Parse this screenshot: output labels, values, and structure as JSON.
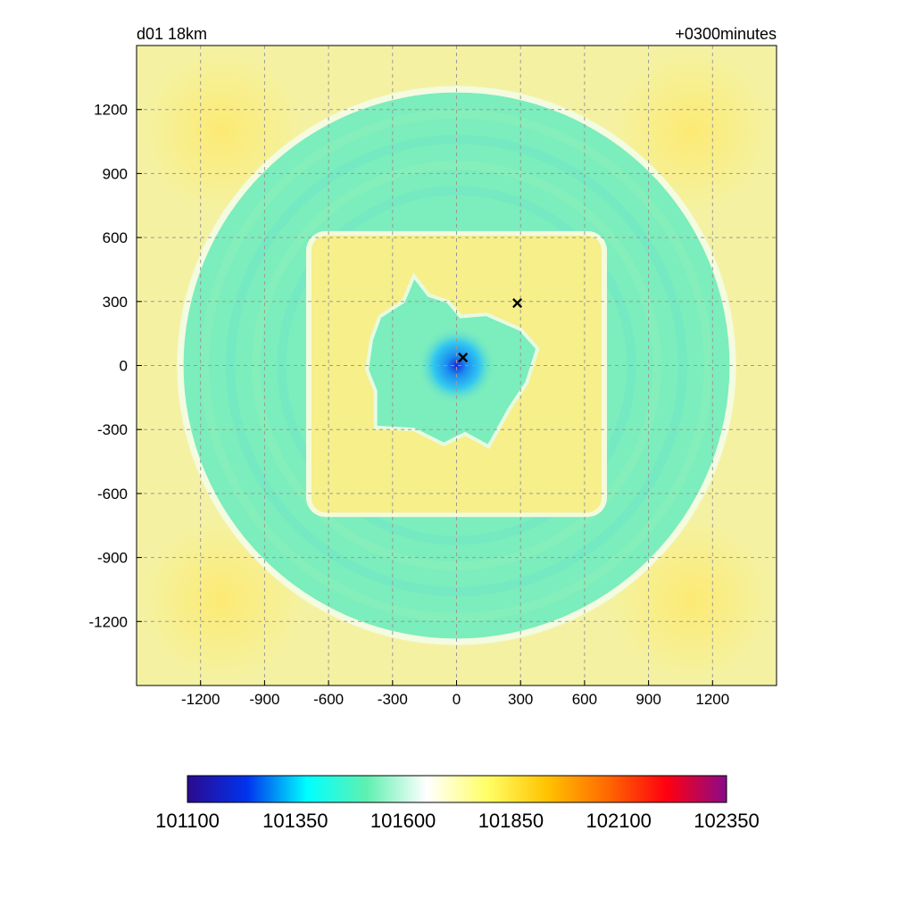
{
  "chart_data": {
    "type": "heatmap",
    "title_left": "d01 18km",
    "title_right": "+0300minutes",
    "xlim": [
      -1500,
      1500
    ],
    "ylim": [
      -1500,
      1500
    ],
    "x_ticks": [
      "-1200",
      "-900",
      "-600",
      "-300",
      "0",
      "300",
      "600",
      "900",
      "1200"
    ],
    "y_ticks": [
      "1200",
      "900",
      "600",
      "300",
      "0",
      "-300",
      "-600",
      "-900",
      "-1200"
    ],
    "grid": true,
    "field": {
      "description_key": "pressure",
      "background": "#f4f2a2",
      "ring": {
        "outer_radius": 1280,
        "inner_half_size": 700,
        "color": "#7cedbc"
      },
      "inner_square": {
        "half_size": 680,
        "color": "#f6ef8a"
      },
      "core_region": {
        "half_size": 360,
        "color": "#7cedbc"
      },
      "center_low": {
        "x": 0,
        "y": 0,
        "radius": 140,
        "color": "#1a9cf0"
      }
    },
    "markers": [
      {
        "symbol": "×",
        "x": 30,
        "y": 35
      },
      {
        "symbol": "×",
        "x": 285,
        "y": 290
      }
    ],
    "colorbar": {
      "min": 101100,
      "max": 102350,
      "tick_labels": [
        "101100",
        "101350",
        "101600",
        "101850",
        "102100",
        "102350"
      ],
      "colors": [
        "#2b0a8f",
        "#0033ee",
        "#00ffff",
        "#60f0b0",
        "#ffffff",
        "#ffff66",
        "#ffc300",
        "#ff6a00",
        "#ff0010",
        "#8a0a8a"
      ]
    }
  }
}
